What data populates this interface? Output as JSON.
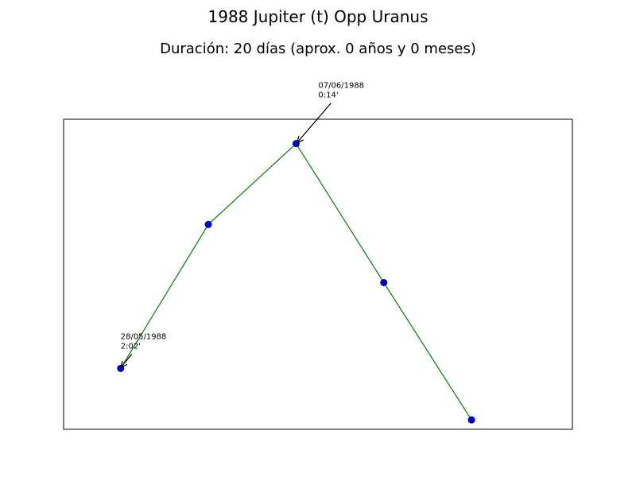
{
  "title": "1988 Jupiter (t) Opp Uranus",
  "subtitle": "Duración: 20 días (aprox. 0 años y 0 meses)",
  "colors": {
    "line": "#008000",
    "marker_fill": "#0000cc",
    "marker_edge": "#000080",
    "frame": "#000000"
  },
  "chart_data": {
    "type": "line",
    "xlabel": "",
    "ylabel": "",
    "grid": false,
    "x_ticks_visible": false,
    "y_ticks_visible": false,
    "xlim": [
      -0.65,
      5.15
    ],
    "ylim": [
      -0.1,
      5.5
    ],
    "series": [
      {
        "values": [
          {
            "x": 0,
            "y": 1.0
          },
          {
            "x": 1,
            "y": 3.6
          },
          {
            "x": 2,
            "y": 5.06
          },
          {
            "x": 3,
            "y": 2.55
          },
          {
            "x": 4,
            "y": 0.07
          }
        ]
      }
    ],
    "annotations": [
      {
        "point_index": 0,
        "line1": "28/05/1988",
        "line2": "2:02'"
      },
      {
        "point_index": 2,
        "line1": "07/06/1988",
        "line2": "0:14'"
      }
    ]
  }
}
